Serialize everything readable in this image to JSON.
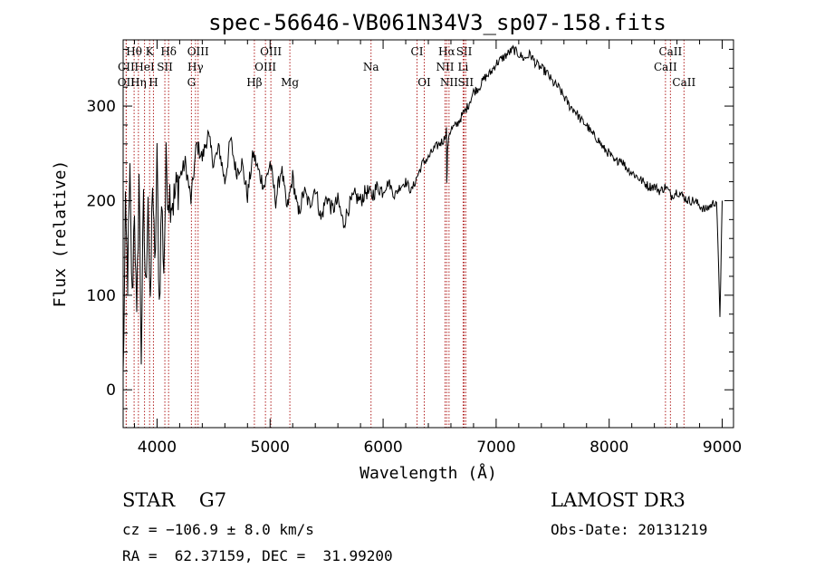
{
  "chart_data": {
    "type": "line",
    "title": "spec-56646-VB061N34V3_sp07-158.fits",
    "xlabel": "Wavelength (Å)",
    "ylabel": "Flux (relative)",
    "xlim": [
      3700,
      9100
    ],
    "ylim": [
      -40,
      370
    ],
    "xticks": [
      4000,
      5000,
      6000,
      7000,
      8000,
      9000
    ],
    "yticks": [
      0,
      100,
      200,
      300
    ],
    "grid": false,
    "series": [
      {
        "name": "spectrum",
        "x": [
          3700,
          3720,
          3740,
          3760,
          3780,
          3800,
          3820,
          3840,
          3860,
          3880,
          3900,
          3920,
          3940,
          3960,
          3980,
          4000,
          4020,
          4040,
          4060,
          4080,
          4100,
          4150,
          4200,
          4250,
          4300,
          4350,
          4400,
          4450,
          4500,
          4550,
          4600,
          4650,
          4700,
          4750,
          4800,
          4850,
          4900,
          4950,
          5000,
          5050,
          5100,
          5150,
          5200,
          5250,
          5300,
          5350,
          5400,
          5450,
          5500,
          5550,
          5600,
          5650,
          5700,
          5750,
          5800,
          5850,
          5900,
          5950,
          6000,
          6050,
          6100,
          6150,
          6200,
          6250,
          6300,
          6350,
          6400,
          6450,
          6500,
          6540,
          6560,
          6563,
          6570,
          6580,
          6600,
          6650,
          6700,
          6750,
          6800,
          6850,
          6900,
          6950,
          7000,
          7050,
          7100,
          7150,
          7200,
          7250,
          7300,
          7350,
          7400,
          7450,
          7500,
          7550,
          7600,
          7650,
          7700,
          7750,
          7800,
          7850,
          7900,
          7950,
          8000,
          8050,
          8100,
          8150,
          8200,
          8250,
          8300,
          8350,
          8400,
          8450,
          8500,
          8550,
          8600,
          8650,
          8700,
          8750,
          8800,
          8850,
          8900,
          8950,
          8980,
          9000
        ],
        "values": [
          10,
          180,
          120,
          220,
          90,
          200,
          60,
          230,
          40,
          190,
          100,
          215,
          70,
          230,
          120,
          240,
          90,
          200,
          130,
          235,
          210,
          200,
          225,
          240,
          200,
          260,
          245,
          270,
          240,
          255,
          220,
          265,
          230,
          240,
          205,
          250,
          230,
          215,
          240,
          200,
          235,
          190,
          225,
          185,
          210,
          195,
          215,
          180,
          205,
          190,
          200,
          175,
          195,
          205,
          200,
          210,
          205,
          215,
          210,
          220,
          205,
          215,
          220,
          210,
          225,
          240,
          245,
          255,
          260,
          265,
          275,
          215,
          250,
          270,
          275,
          280,
          290,
          300,
          315,
          320,
          330,
          335,
          345,
          350,
          355,
          360,
          355,
          350,
          355,
          345,
          340,
          335,
          325,
          320,
          310,
          300,
          295,
          285,
          280,
          270,
          265,
          255,
          250,
          240,
          245,
          235,
          230,
          225,
          220,
          215,
          215,
          210,
          215,
          205,
          210,
          205,
          200,
          200,
          195,
          190,
          195,
          200,
          80,
          200
        ]
      }
    ],
    "lines": [
      {
        "label": "Hθ",
        "wavelength": 3797,
        "row": 0
      },
      {
        "label": "K",
        "wavelength": 3934,
        "row": 0
      },
      {
        "label": "Hδ",
        "wavelength": 4102,
        "row": 0
      },
      {
        "label": "OIII",
        "wavelength": 4363,
        "row": 0
      },
      {
        "label": "OIII",
        "wavelength": 5007,
        "row": 0
      },
      {
        "label": "CI",
        "wavelength": 6300,
        "row": 0
      },
      {
        "label": "Hα",
        "wavelength": 6563,
        "row": 0
      },
      {
        "label": "SII",
        "wavelength": 6717,
        "row": 0
      },
      {
        "label": "CaII",
        "wavelength": 8542,
        "row": 0
      },
      {
        "label": "CII",
        "wavelength": 3727,
        "row": 1
      },
      {
        "label": "HeI",
        "wavelength": 3889,
        "row": 1
      },
      {
        "label": "SII",
        "wavelength": 4069,
        "row": 1
      },
      {
        "label": "Hγ",
        "wavelength": 4340,
        "row": 1
      },
      {
        "label": "OIII",
        "wavelength": 4959,
        "row": 1
      },
      {
        "label": "Na",
        "wavelength": 5893,
        "row": 1
      },
      {
        "label": "NII",
        "wavelength": 6548,
        "row": 1
      },
      {
        "label": "Li",
        "wavelength": 6708,
        "row": 1
      },
      {
        "label": "CaII",
        "wavelength": 8498,
        "row": 1
      },
      {
        "label": "OII",
        "wavelength": 3727,
        "row": 2
      },
      {
        "label": "Hη",
        "wavelength": 3835,
        "row": 2
      },
      {
        "label": "H",
        "wavelength": 3968,
        "row": 2
      },
      {
        "label": "G",
        "wavelength": 4304,
        "row": 2
      },
      {
        "label": "Hβ",
        "wavelength": 4861,
        "row": 2
      },
      {
        "label": "Mg",
        "wavelength": 5175,
        "row": 2
      },
      {
        "label": "OI",
        "wavelength": 6364,
        "row": 2
      },
      {
        "label": "NII",
        "wavelength": 6583,
        "row": 2
      },
      {
        "label": "SII",
        "wavelength": 6731,
        "row": 2
      },
      {
        "label": "CaII",
        "wavelength": 8662,
        "row": 2
      }
    ]
  },
  "info": {
    "class_line": "STAR    G7",
    "cz_line": "cz = −106.9 ± 8.0 km/s",
    "radec_line": "RA =  62.37159, DEC =  31.99200",
    "survey": "LAMOST DR3",
    "obs_date": "Obs-Date: 20131219"
  }
}
